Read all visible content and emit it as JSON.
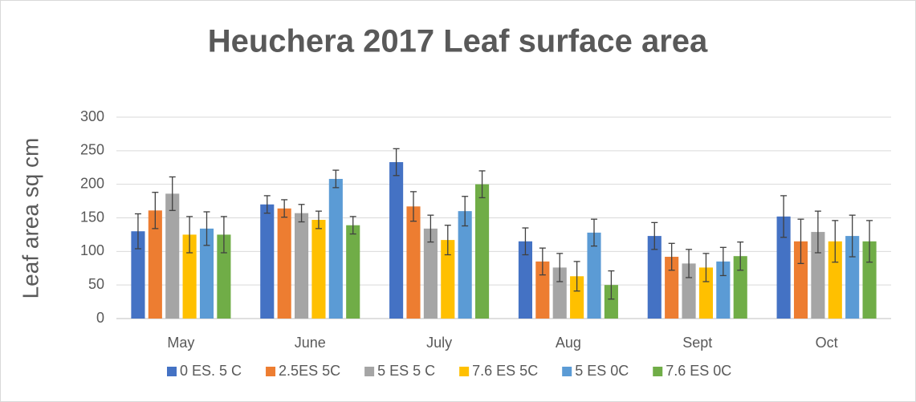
{
  "chart_data": {
    "type": "bar",
    "title": "Heuchera 2017 Leaf surface area",
    "y_label": "Leaf area sq cm",
    "categories": [
      "May",
      "June",
      "July",
      "Aug",
      "Sept",
      "Oct"
    ],
    "series": [
      {
        "name": "0 ES. 5 C",
        "color": "#4472c4",
        "values": [
          130,
          170,
          233,
          115,
          123,
          152
        ],
        "errors": [
          26,
          13,
          20,
          20,
          20,
          31
        ]
      },
      {
        "name": "2.5ES 5C",
        "color": "#ed7d31",
        "values": [
          161,
          164,
          167,
          85,
          92,
          115
        ],
        "errors": [
          27,
          13,
          22,
          20,
          20,
          33
        ]
      },
      {
        "name": "5 ES 5 C",
        "color": "#a5a5a5",
        "values": [
          186,
          157,
          134,
          76,
          82,
          129
        ],
        "errors": [
          25,
          13,
          20,
          21,
          21,
          31
        ]
      },
      {
        "name": "7.6 ES 5C",
        "color": "#ffc000",
        "values": [
          125,
          147,
          117,
          63,
          76,
          115
        ],
        "errors": [
          27,
          13,
          22,
          22,
          21,
          31
        ]
      },
      {
        "name": "5 ES 0C",
        "color": "#5b9bd5",
        "values": [
          134,
          208,
          160,
          128,
          85,
          123
        ],
        "errors": [
          25,
          13,
          22,
          20,
          21,
          31
        ]
      },
      {
        "name": "7.6 ES 0C",
        "color": "#70ad47",
        "values": [
          125,
          139,
          200,
          50,
          93,
          115
        ],
        "errors": [
          27,
          13,
          20,
          21,
          21,
          31
        ]
      }
    ],
    "ylim": [
      0,
      300
    ],
    "yticks": [
      0,
      50,
      100,
      150,
      200,
      250,
      300
    ],
    "grid": true,
    "legend": "bottom"
  }
}
